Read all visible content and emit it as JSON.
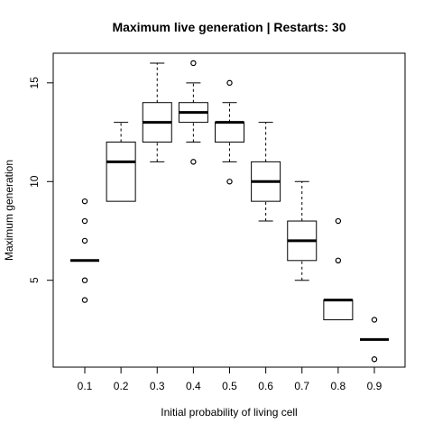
{
  "chart_data": {
    "type": "boxplot",
    "title": "Maximum live generation | Restarts: 30",
    "xlabel": "Initial probability of living cell",
    "ylabel": "Maximum generation",
    "categories": [
      "0.1",
      "0.2",
      "0.3",
      "0.4",
      "0.5",
      "0.6",
      "0.7",
      "0.8",
      "0.9"
    ],
    "y_ticks": [
      5,
      10,
      15
    ],
    "ylim": [
      0.6,
      16.5
    ],
    "grid": false,
    "boxes": [
      {
        "category": "0.1",
        "whisker_low": 6,
        "q1": 6,
        "median": 6,
        "q3": 6,
        "whisker_high": 6,
        "outliers": [
          4,
          5,
          7,
          8,
          9
        ]
      },
      {
        "category": "0.2",
        "whisker_low": 9,
        "q1": 9,
        "median": 11,
        "q3": 12,
        "whisker_high": 13,
        "outliers": []
      },
      {
        "category": "0.3",
        "whisker_low": 11,
        "q1": 12,
        "median": 13,
        "q3": 14,
        "whisker_high": 16,
        "outliers": []
      },
      {
        "category": "0.4",
        "whisker_low": 12,
        "q1": 13,
        "median": 13.5,
        "q3": 14,
        "whisker_high": 15,
        "outliers": [
          11,
          16
        ]
      },
      {
        "category": "0.5",
        "whisker_low": 11,
        "q1": 12,
        "median": 13,
        "q3": 13,
        "whisker_high": 14,
        "outliers": [
          10,
          15
        ]
      },
      {
        "category": "0.6",
        "whisker_low": 8,
        "q1": 9,
        "median": 10,
        "q3": 11,
        "whisker_high": 13,
        "outliers": []
      },
      {
        "category": "0.7",
        "whisker_low": 5,
        "q1": 6,
        "median": 7,
        "q3": 8,
        "whisker_high": 10,
        "outliers": []
      },
      {
        "category": "0.8",
        "whisker_low": 3,
        "q1": 3,
        "median": 4,
        "q3": 4,
        "whisker_high": 4,
        "outliers": [
          6,
          8
        ]
      },
      {
        "category": "0.9",
        "whisker_low": 2,
        "q1": 2,
        "median": 2,
        "q3": 2,
        "whisker_high": 2,
        "outliers": [
          1,
          3
        ]
      }
    ]
  }
}
